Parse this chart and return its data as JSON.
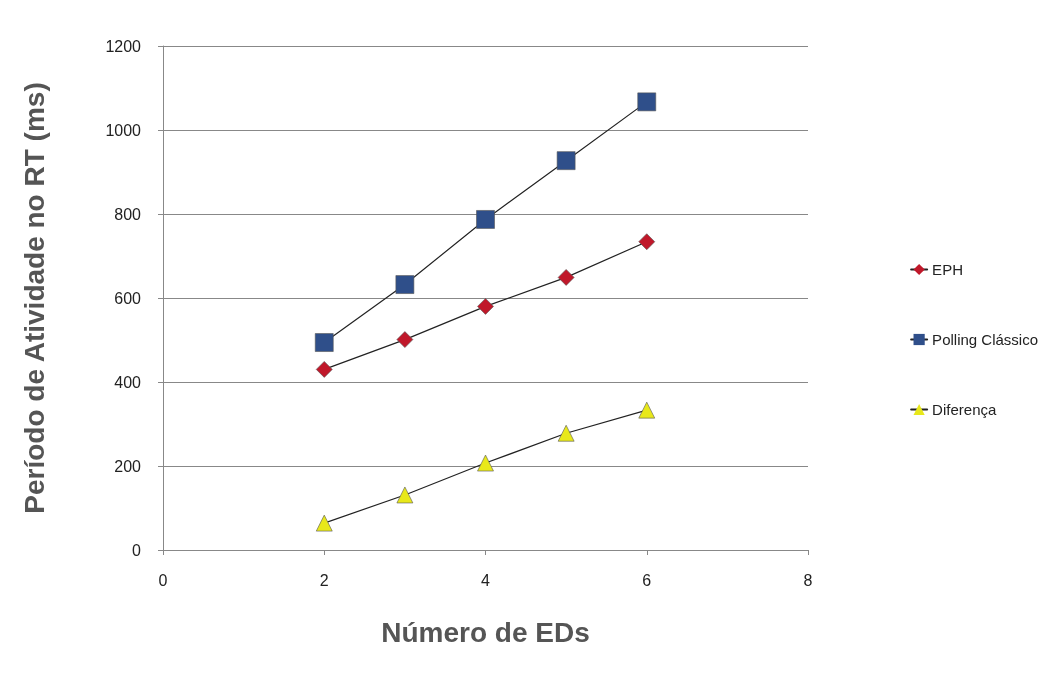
{
  "chart_data": {
    "type": "line",
    "xlabel": "Número de EDs",
    "ylabel": "Período de Atividade no RT (ms)",
    "x": [
      2,
      3,
      4,
      5,
      6
    ],
    "series": [
      {
        "name": "EPH",
        "color": "#c0182a",
        "marker": "diamond",
        "values": [
          430,
          501,
          580,
          649,
          734
        ]
      },
      {
        "name": "Polling Clássico",
        "color": "#2f4f8a",
        "marker": "square",
        "values": [
          494,
          632,
          787,
          927,
          1067
        ]
      },
      {
        "name": "Diferença",
        "color": "#e8e81a",
        "marker": "triangle",
        "values": [
          64,
          131,
          207,
          278,
          333
        ]
      }
    ],
    "xlim": [
      0,
      8
    ],
    "xticks": [
      0,
      2,
      4,
      6,
      8
    ],
    "ylim": [
      0,
      1200
    ],
    "yticks": [
      0,
      200,
      400,
      600,
      800,
      1000,
      1200
    ],
    "grid": "y",
    "legend": "right",
    "line_style": "solid"
  }
}
